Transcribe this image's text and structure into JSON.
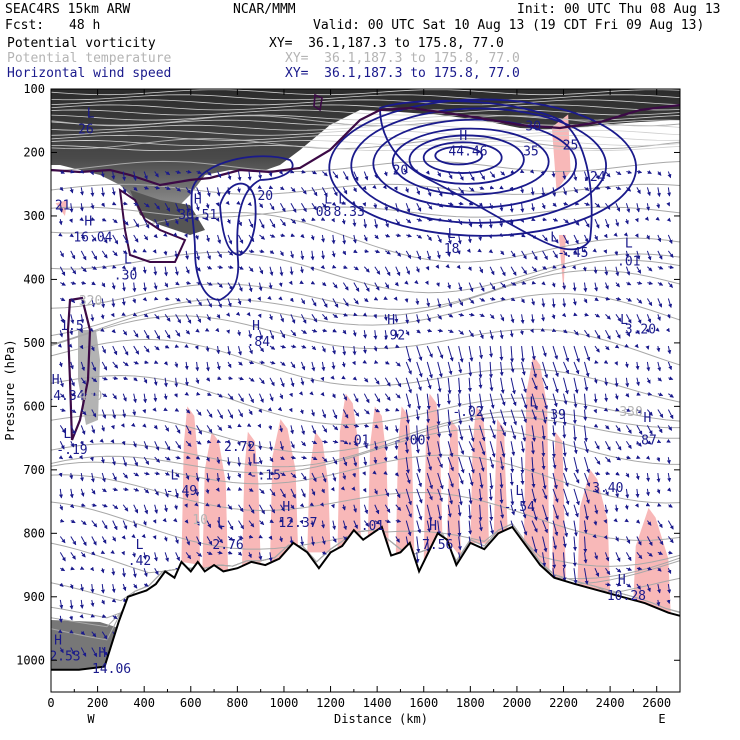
{
  "header": {
    "model": "SEAC4RS 15km ARW",
    "center": "NCAR/MMM",
    "init": "Init: 00 UTC Thu 08 Aug 13",
    "fcst_label": "Fcst:",
    "fcst_value": "48 h",
    "valid": "Valid: 00 UTC Sat 10 Aug 13 (19 CDT Fri 09 Aug 13)",
    "fields": [
      {
        "name": "Potential vorticity",
        "xy": "XY=  36.1,187.3 to 175.8, 77.0",
        "color": "#000000"
      },
      {
        "name": "Potential temperature",
        "xy": "XY=  36.1,187.3 to 175.8, 77.0",
        "color": "#b4b4b4"
      },
      {
        "name": "Horizontal wind speed",
        "xy": "XY=  36.1,187.3 to 175.8, 77.0",
        "color": "#1a1a8c"
      }
    ]
  },
  "chart_data": {
    "type": "cross-section",
    "xlabel": "Distance (km)",
    "ylabel": "Pressure (hPa)",
    "xlim": [
      0,
      2700
    ],
    "ylim": [
      1050,
      100
    ],
    "x_ticks": [
      0,
      200,
      400,
      600,
      800,
      1000,
      1200,
      1400,
      1600,
      1800,
      2000,
      2200,
      2400,
      2600
    ],
    "y_ticks": [
      100,
      200,
      300,
      400,
      500,
      600,
      700,
      800,
      900,
      1000
    ],
    "end_labels": {
      "left": "W",
      "right": "E"
    },
    "terrain": [
      [
        0,
        1015
      ],
      [
        120,
        1015
      ],
      [
        230,
        1010
      ],
      [
        290,
        940
      ],
      [
        330,
        900
      ],
      [
        370,
        895
      ],
      [
        410,
        890
      ],
      [
        450,
        880
      ],
      [
        490,
        860
      ],
      [
        530,
        870
      ],
      [
        560,
        845
      ],
      [
        600,
        860
      ],
      [
        630,
        845
      ],
      [
        660,
        860
      ],
      [
        700,
        850
      ],
      [
        740,
        860
      ],
      [
        800,
        855
      ],
      [
        860,
        845
      ],
      [
        920,
        850
      ],
      [
        980,
        840
      ],
      [
        1040,
        815
      ],
      [
        1100,
        830
      ],
      [
        1150,
        855
      ],
      [
        1200,
        830
      ],
      [
        1250,
        820
      ],
      [
        1300,
        795
      ],
      [
        1340,
        810
      ],
      [
        1380,
        800
      ],
      [
        1420,
        790
      ],
      [
        1460,
        835
      ],
      [
        1500,
        830
      ],
      [
        1540,
        815
      ],
      [
        1580,
        860
      ],
      [
        1620,
        830
      ],
      [
        1660,
        800
      ],
      [
        1700,
        810
      ],
      [
        1740,
        850
      ],
      [
        1800,
        815
      ],
      [
        1860,
        825
      ],
      [
        1920,
        800
      ],
      [
        1980,
        790
      ],
      [
        2040,
        820
      ],
      [
        2100,
        850
      ],
      [
        2160,
        870
      ],
      [
        2250,
        880
      ],
      [
        2350,
        890
      ],
      [
        2450,
        900
      ],
      [
        2550,
        910
      ],
      [
        2650,
        925
      ],
      [
        2700,
        930
      ]
    ],
    "wind_max_center": {
      "x": 1750,
      "p": 205
    },
    "labels": [
      {
        "t": "L",
        "x": 170,
        "p": 145,
        "c": "#1a1a8c"
      },
      {
        "t": "26",
        "x": 150,
        "p": 170,
        "c": "#1a1a8c"
      },
      {
        "t": "21",
        "x": 50,
        "p": 290,
        "c": "#1a1a8c"
      },
      {
        "t": "H",
        "x": 160,
        "p": 315,
        "c": "#1a1a8c"
      },
      {
        "t": "16.04",
        "x": 180,
        "p": 340,
        "c": "#1a1a8c"
      },
      {
        "t": "H",
        "x": 630,
        "p": 280,
        "c": "#1a1a8c"
      },
      {
        "t": "30.51",
        "x": 630,
        "p": 305,
        "c": "#1a1a8c"
      },
      {
        "t": "20",
        "x": 920,
        "p": 275,
        "c": "#1a1a8c"
      },
      {
        "t": "L",
        "x": 1190,
        "p": 280,
        "c": "#1a1a8c"
      },
      {
        "t": "L",
        "x": 1250,
        "p": 280,
        "c": "#1a1a8c"
      },
      {
        "t": "08",
        "x": 1170,
        "p": 300,
        "c": "#1a1a8c"
      },
      {
        "t": "8.33",
        "x": 1280,
        "p": 300,
        "c": "#1a1a8c"
      },
      {
        "t": "L",
        "x": 1720,
        "p": 335,
        "c": "#1a1a8c"
      },
      {
        "t": "18",
        "x": 1720,
        "p": 358,
        "c": "#1a1a8c"
      },
      {
        "t": "20",
        "x": 1500,
        "p": 235,
        "c": "#1a1a8c"
      },
      {
        "t": "H",
        "x": 1770,
        "p": 180,
        "c": "#1a1a8c"
      },
      {
        "t": "44.46",
        "x": 1790,
        "p": 205,
        "c": "#1a1a8c"
      },
      {
        "t": "35",
        "x": 2060,
        "p": 205,
        "c": "#1a1a8c"
      },
      {
        "t": "30",
        "x": 2070,
        "p": 165,
        "c": "#1a1a8c"
      },
      {
        "t": "25",
        "x": 2230,
        "p": 195,
        "c": "#1a1a8c"
      },
      {
        "t": ".24",
        "x": 2330,
        "p": 245,
        "c": "#1a1a8c"
      },
      {
        "t": "L",
        "x": 2160,
        "p": 340,
        "c": "#1a1a8c"
      },
      {
        "t": "-.45",
        "x": 2240,
        "p": 365,
        "c": "#1a1a8c"
      },
      {
        "t": "L",
        "x": 2480,
        "p": 350,
        "c": "#1a1a8c"
      },
      {
        "t": ".01",
        "x": 2480,
        "p": 378,
        "c": "#1a1a8c"
      },
      {
        "t": "L",
        "x": 2460,
        "p": 470,
        "c": "#1a1a8c"
      },
      {
        "t": "3.20",
        "x": 2530,
        "p": 485,
        "c": "#1a1a8c"
      },
      {
        "t": "L",
        "x": 330,
        "p": 375,
        "c": "#1a1a8c"
      },
      {
        "t": ".30",
        "x": 320,
        "p": 400,
        "c": "#1a1a8c"
      },
      {
        "t": "320",
        "x": 170,
        "p": 440,
        "c": "#b4b4b4"
      },
      {
        "t": "1.5",
        "x": 90,
        "p": 480,
        "c": "#1a1a8c"
      },
      {
        "t": "H",
        "x": 880,
        "p": 480,
        "c": "#1a1a8c"
      },
      {
        "t": ".84",
        "x": 890,
        "p": 505,
        "c": "#1a1a8c"
      },
      {
        "t": "H",
        "x": 1460,
        "p": 470,
        "c": "#1a1a8c"
      },
      {
        "t": ".92",
        "x": 1470,
        "p": 495,
        "c": "#1a1a8c"
      },
      {
        "t": "H",
        "x": 20,
        "p": 565,
        "c": "#1a1a8c"
      },
      {
        "t": "14.34",
        "x": 60,
        "p": 590,
        "c": "#1a1a8c"
      },
      {
        "t": "400",
        "x": 170,
        "p": 590,
        "c": "#b4b4b4"
      },
      {
        "t": "L",
        "x": 70,
        "p": 650,
        "c": "#1a1a8c"
      },
      {
        "t": "-.19",
        "x": 90,
        "p": 675,
        "c": "#1a1a8c"
      },
      {
        "t": "L",
        "x": 2070,
        "p": 600,
        "c": "#1a1a8c"
      },
      {
        "t": ".39",
        "x": 2160,
        "p": 620,
        "c": "#1a1a8c"
      },
      {
        "t": "-.02",
        "x": 1790,
        "p": 615,
        "c": "#1a1a8c"
      },
      {
        "t": "H",
        "x": 2560,
        "p": 625,
        "c": "#1a1a8c"
      },
      {
        "t": ".87",
        "x": 2550,
        "p": 660,
        "c": "#1a1a8c"
      },
      {
        "t": "330",
        "x": 2490,
        "p": 615,
        "c": "#b4b4b4"
      },
      {
        "t": "2.72",
        "x": 810,
        "p": 670,
        "c": "#1a1a8c"
      },
      {
        "t": "-.01",
        "x": 1300,
        "p": 660,
        "c": "#1a1a8c"
      },
      {
        "t": "-.00",
        "x": 1540,
        "p": 660,
        "c": "#1a1a8c"
      },
      {
        "t": "L",
        "x": 880,
        "p": 690,
        "c": "#1a1a8c"
      },
      {
        "t": "-.15",
        "x": 920,
        "p": 715,
        "c": "#1a1a8c"
      },
      {
        "t": "L",
        "x": 530,
        "p": 715,
        "c": "#1a1a8c"
      },
      {
        "t": "-.49",
        "x": 560,
        "p": 740,
        "c": "#1a1a8c"
      },
      {
        "t": "3.40",
        "x": 2390,
        "p": 735,
        "c": "#1a1a8c"
      },
      {
        "t": "L",
        "x": 2010,
        "p": 740,
        "c": "#1a1a8c"
      },
      {
        "t": "-.54",
        "x": 2010,
        "p": 765,
        "c": "#1a1a8c"
      },
      {
        "t": "H",
        "x": 1010,
        "p": 765,
        "c": "#1a1a8c"
      },
      {
        "t": "12.37",
        "x": 1060,
        "p": 790,
        "c": "#1a1a8c"
      },
      {
        "t": "L",
        "x": 730,
        "p": 790,
        "c": "#1a1a8c"
      },
      {
        "t": "10",
        "x": 640,
        "p": 785,
        "c": "#b4b4b4"
      },
      {
        "t": "2.76",
        "x": 760,
        "p": 825,
        "c": "#1a1a8c"
      },
      {
        "t": ".01",
        "x": 1380,
        "p": 795,
        "c": "#1a1a8c"
      },
      {
        "t": "H",
        "x": 1640,
        "p": 795,
        "c": "#1a1a8c"
      },
      {
        "t": "7.56",
        "x": 1660,
        "p": 825,
        "c": "#1a1a8c"
      },
      {
        "t": "L",
        "x": 380,
        "p": 825,
        "c": "#1a1a8c"
      },
      {
        "t": ".42",
        "x": 380,
        "p": 850,
        "c": "#1a1a8c"
      },
      {
        "t": "H",
        "x": 2450,
        "p": 880,
        "c": "#1a1a8c"
      },
      {
        "t": "10.28",
        "x": 2470,
        "p": 905,
        "c": "#1a1a8c"
      },
      {
        "t": "H",
        "x": 30,
        "p": 975,
        "c": "#1a1a8c"
      },
      {
        "t": "2.53",
        "x": 60,
        "p": 1000,
        "c": "#1a1a8c"
      },
      {
        "t": "H",
        "x": 220,
        "p": 995,
        "c": "#1a1a8c"
      },
      {
        "t": "14.06",
        "x": 260,
        "p": 1020,
        "c": "#1a1a8c"
      }
    ]
  }
}
